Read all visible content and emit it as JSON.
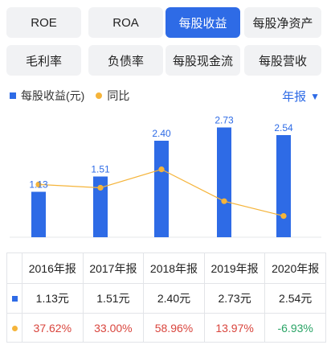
{
  "metric_tabs": [
    {
      "label": "ROE",
      "active": false
    },
    {
      "label": "ROA",
      "active": false
    },
    {
      "label": "每股收益",
      "active": true
    },
    {
      "label": "每股净资产",
      "active": false
    },
    {
      "label": "毛利率",
      "active": false
    },
    {
      "label": "负债率",
      "active": false
    },
    {
      "label": "每股现金流",
      "active": false
    },
    {
      "label": "每股营收",
      "active": false
    }
  ],
  "legend": {
    "bar_label": "每股收益(元)",
    "line_label": "同比"
  },
  "period_selector": {
    "label": "年报",
    "icon": "chevron-down-icon"
  },
  "colors": {
    "accent": "#2e6be6",
    "line": "#f5b43a",
    "positive": "#d9453d",
    "negative": "#2aa466"
  },
  "chart_data": {
    "type": "bar",
    "categories": [
      "2016年报",
      "2017年报",
      "2018年报",
      "2019年报",
      "2020年报"
    ],
    "series": [
      {
        "name": "每股收益(元)",
        "type": "bar",
        "values": [
          1.13,
          1.51,
          2.4,
          2.73,
          2.54
        ],
        "labels": [
          "1.13",
          "1.51",
          "2.40",
          "2.73",
          "2.54"
        ]
      },
      {
        "name": "同比",
        "type": "line",
        "values": [
          37.62,
          33.0,
          58.96,
          13.97,
          -6.93
        ]
      }
    ],
    "grid": false
  },
  "table": {
    "headers": [
      "2016年报",
      "2017年报",
      "2018年报",
      "2019年报",
      "2020年报"
    ],
    "eps_row": [
      "1.13元",
      "1.51元",
      "2.40元",
      "2.73元",
      "2.54元"
    ],
    "yoy_row": [
      "37.62%",
      "33.00%",
      "58.96%",
      "13.97%",
      "-6.93%"
    ]
  }
}
